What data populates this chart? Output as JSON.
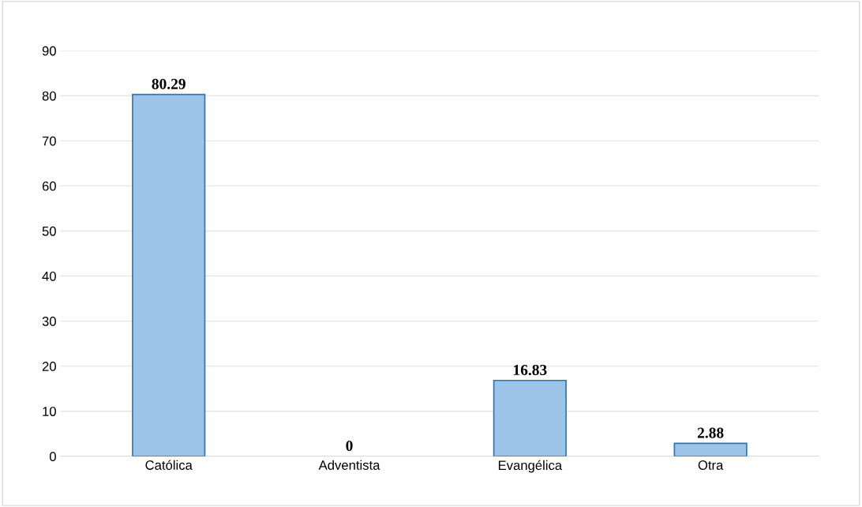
{
  "chart_data": {
    "type": "bar",
    "categories": [
      "Católica",
      "Adventista",
      "Evangélica",
      "Otra"
    ],
    "values": [
      80.29,
      0,
      16.83,
      2.88
    ],
    "color": "#9dc3e6",
    "ylim": [
      0,
      90
    ],
    "yticks": [
      0,
      10,
      20,
      30,
      40,
      50,
      60,
      70,
      80,
      90
    ],
    "grid": "y",
    "data_labels": true
  }
}
